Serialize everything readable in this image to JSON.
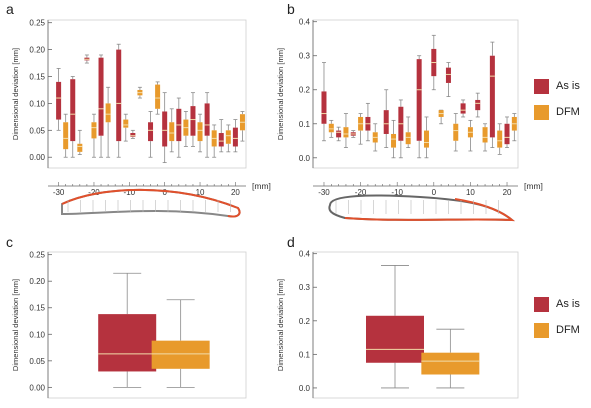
{
  "panel_labels": [
    "a",
    "b",
    "c",
    "d"
  ],
  "colors": {
    "as_is": "#b5323e",
    "dfm": "#e89a2c",
    "median": "#f2dca8",
    "axis": "#666666",
    "whisker": "#8a8a8a"
  },
  "x_unit": "[mm]",
  "legend": {
    "as_is": "As is",
    "dfm": "DFM"
  },
  "chart_data": [
    {
      "type": "box",
      "panel": "a",
      "ylabel": "Dimensional deviation [mm]",
      "xlabel": "[mm]",
      "xlim": [
        -33,
        23
      ],
      "ylim": [
        -0.02,
        0.255
      ],
      "yticks": [
        0.0,
        0.05,
        0.1,
        0.15,
        0.2,
        0.25
      ],
      "xticks": [
        -30,
        -20,
        -10,
        0,
        10,
        20
      ],
      "series": [
        {
          "name": "As is",
          "boxes": [
            {
              "x": -30,
              "min": 0.05,
              "q1": 0.07,
              "med": 0.11,
              "q3": 0.14,
              "max": 0.165
            },
            {
              "x": -26,
              "min": 0.0,
              "q1": 0.03,
              "med": 0.08,
              "q3": 0.145,
              "max": 0.15
            },
            {
              "x": -22,
              "min": 0.175,
              "q1": 0.18,
              "med": 0.182,
              "q3": 0.185,
              "max": 0.19
            },
            {
              "x": -18,
              "min": 0.0,
              "q1": 0.04,
              "med": 0.09,
              "q3": 0.185,
              "max": 0.19
            },
            {
              "x": -13,
              "min": 0.0,
              "q1": 0.03,
              "med": 0.1,
              "q3": 0.2,
              "max": 0.21
            },
            {
              "x": -9,
              "min": 0.035,
              "q1": 0.038,
              "med": 0.04,
              "q3": 0.045,
              "max": 0.05
            },
            {
              "x": -4,
              "min": 0.0,
              "q1": 0.03,
              "med": 0.05,
              "q3": 0.065,
              "max": 0.085
            },
            {
              "x": 0,
              "min": -0.01,
              "q1": 0.02,
              "med": 0.05,
              "q3": 0.085,
              "max": 0.12
            },
            {
              "x": 4,
              "min": 0.0,
              "q1": 0.03,
              "med": 0.06,
              "q3": 0.09,
              "max": 0.11
            },
            {
              "x": 8,
              "min": 0.02,
              "q1": 0.04,
              "med": 0.07,
              "q3": 0.095,
              "max": 0.12
            },
            {
              "x": 12,
              "min": 0.0,
              "q1": 0.04,
              "med": 0.06,
              "q3": 0.1,
              "max": 0.12
            },
            {
              "x": 16,
              "min": 0.01,
              "q1": 0.02,
              "med": 0.03,
              "q3": 0.045,
              "max": 0.07
            },
            {
              "x": 20,
              "min": 0.01,
              "q1": 0.02,
              "med": 0.035,
              "q3": 0.055,
              "max": 0.07
            }
          ]
        },
        {
          "name": "DFM",
          "boxes": [
            {
              "x": -28,
              "min": 0.0,
              "q1": 0.015,
              "med": 0.035,
              "q3": 0.065,
              "max": 0.08
            },
            {
              "x": -24,
              "min": 0.005,
              "q1": 0.01,
              "med": 0.02,
              "q3": 0.025,
              "max": 0.05
            },
            {
              "x": -20,
              "min": 0.0,
              "q1": 0.035,
              "med": 0.055,
              "q3": 0.065,
              "max": 0.08
            },
            {
              "x": -16,
              "min": 0.0,
              "q1": 0.065,
              "med": 0.08,
              "q3": 0.1,
              "max": 0.13
            },
            {
              "x": -11,
              "min": 0.03,
              "q1": 0.055,
              "med": 0.06,
              "q3": 0.07,
              "max": 0.08
            },
            {
              "x": -7,
              "min": 0.11,
              "q1": 0.115,
              "med": 0.12,
              "q3": 0.125,
              "max": 0.13
            },
            {
              "x": -2,
              "min": 0.08,
              "q1": 0.09,
              "med": 0.11,
              "q3": 0.135,
              "max": 0.14
            },
            {
              "x": 2,
              "min": 0.01,
              "q1": 0.03,
              "med": 0.045,
              "q3": 0.065,
              "max": 0.09
            },
            {
              "x": 6,
              "min": 0.02,
              "q1": 0.04,
              "med": 0.055,
              "q3": 0.07,
              "max": 0.085
            },
            {
              "x": 10,
              "min": 0.01,
              "q1": 0.03,
              "med": 0.05,
              "q3": 0.065,
              "max": 0.08
            },
            {
              "x": 14,
              "min": 0.0,
              "q1": 0.02,
              "med": 0.035,
              "q3": 0.05,
              "max": 0.06
            },
            {
              "x": 18,
              "min": 0.01,
              "q1": 0.025,
              "med": 0.04,
              "q3": 0.05,
              "max": 0.06
            },
            {
              "x": 22,
              "min": 0.03,
              "q1": 0.05,
              "med": 0.065,
              "q3": 0.08,
              "max": 0.085
            }
          ]
        }
      ]
    },
    {
      "type": "box",
      "panel": "b",
      "ylabel": "Dimensional deviation [mm]",
      "xlabel": "[mm]",
      "xlim": [
        -33,
        23
      ],
      "ylim": [
        -0.03,
        0.405
      ],
      "yticks": [
        0.0,
        0.1,
        0.2,
        0.3,
        0.4
      ],
      "xticks": [
        -30,
        -20,
        -10,
        0,
        10,
        20
      ],
      "series": [
        {
          "name": "As is",
          "boxes": [
            {
              "x": -30,
              "min": 0.05,
              "q1": 0.1,
              "med": 0.13,
              "q3": 0.195,
              "max": 0.28
            },
            {
              "x": -26,
              "min": 0.05,
              "q1": 0.06,
              "med": 0.075,
              "q3": 0.08,
              "max": 0.09
            },
            {
              "x": -22,
              "min": 0.06,
              "q1": 0.065,
              "med": 0.07,
              "q3": 0.075,
              "max": 0.08
            },
            {
              "x": -18,
              "min": 0.05,
              "q1": 0.08,
              "med": 0.1,
              "q3": 0.12,
              "max": 0.16
            },
            {
              "x": -13,
              "min": 0.03,
              "q1": 0.07,
              "med": 0.1,
              "q3": 0.14,
              "max": 0.2
            },
            {
              "x": -9,
              "min": 0.0,
              "q1": 0.05,
              "med": 0.1,
              "q3": 0.15,
              "max": 0.17
            },
            {
              "x": -4,
              "min": 0.0,
              "q1": 0.05,
              "med": 0.2,
              "q3": 0.29,
              "max": 0.3
            },
            {
              "x": 0,
              "min": 0.2,
              "q1": 0.24,
              "med": 0.28,
              "q3": 0.32,
              "max": 0.36
            },
            {
              "x": 4,
              "min": 0.18,
              "q1": 0.22,
              "med": 0.245,
              "q3": 0.265,
              "max": 0.28
            },
            {
              "x": 8,
              "min": 0.12,
              "q1": 0.13,
              "med": 0.14,
              "q3": 0.16,
              "max": 0.17
            },
            {
              "x": 12,
              "min": 0.12,
              "q1": 0.14,
              "med": 0.16,
              "q3": 0.17,
              "max": 0.19
            },
            {
              "x": 16,
              "min": 0.03,
              "q1": 0.06,
              "med": 0.24,
              "q3": 0.3,
              "max": 0.34
            },
            {
              "x": 20,
              "min": 0.03,
              "q1": 0.04,
              "med": 0.06,
              "q3": 0.1,
              "max": 0.12
            }
          ]
        },
        {
          "name": "DFM",
          "boxes": [
            {
              "x": -28,
              "min": 0.06,
              "q1": 0.075,
              "med": 0.085,
              "q3": 0.1,
              "max": 0.11
            },
            {
              "x": -24,
              "min": 0.03,
              "q1": 0.06,
              "med": 0.07,
              "q3": 0.09,
              "max": 0.13
            },
            {
              "x": -20,
              "min": 0.04,
              "q1": 0.08,
              "med": 0.1,
              "q3": 0.12,
              "max": 0.13
            },
            {
              "x": -16,
              "min": 0.02,
              "q1": 0.045,
              "med": 0.06,
              "q3": 0.075,
              "max": 0.1
            },
            {
              "x": -11,
              "min": 0.0,
              "q1": 0.03,
              "med": 0.055,
              "q3": 0.07,
              "max": 0.11
            },
            {
              "x": -7,
              "min": 0.03,
              "q1": 0.04,
              "med": 0.06,
              "q3": 0.075,
              "max": 0.12
            },
            {
              "x": -2,
              "min": 0.0,
              "q1": 0.03,
              "med": 0.045,
              "q3": 0.08,
              "max": 0.12
            },
            {
              "x": 2,
              "min": 0.1,
              "q1": 0.12,
              "med": 0.13,
              "q3": 0.14,
              "max": 0.14
            },
            {
              "x": 6,
              "min": 0.02,
              "q1": 0.05,
              "med": 0.08,
              "q3": 0.1,
              "max": 0.13
            },
            {
              "x": 10,
              "min": 0.02,
              "q1": 0.06,
              "med": 0.075,
              "q3": 0.09,
              "max": 0.11
            },
            {
              "x": 14,
              "min": 0.02,
              "q1": 0.045,
              "med": 0.06,
              "q3": 0.09,
              "max": 0.1
            },
            {
              "x": 18,
              "min": 0.01,
              "q1": 0.03,
              "med": 0.05,
              "q3": 0.08,
              "max": 0.1
            },
            {
              "x": 22,
              "min": 0.05,
              "q1": 0.08,
              "med": 0.1,
              "q3": 0.12,
              "max": 0.13
            }
          ]
        }
      ]
    },
    {
      "type": "box",
      "panel": "c",
      "ylabel": "Dimensional deviation [mm]",
      "ylim": [
        -0.02,
        0.255
      ],
      "yticks": [
        0.0,
        0.05,
        0.1,
        0.15,
        0.2,
        0.25
      ],
      "series": [
        {
          "name": "As is",
          "boxes": [
            {
              "x": 0,
              "min": 0.0,
              "q1": 0.03,
              "med": 0.063,
              "q3": 0.138,
              "max": 0.215
            }
          ]
        },
        {
          "name": "DFM",
          "boxes": [
            {
              "x": 1,
              "min": 0.0,
              "q1": 0.035,
              "med": 0.063,
              "q3": 0.088,
              "max": 0.165
            }
          ]
        }
      ]
    },
    {
      "type": "box",
      "panel": "d",
      "ylabel": "Dimensional deviation [mm]",
      "ylim": [
        -0.03,
        0.405
      ],
      "yticks": [
        0.0,
        0.1,
        0.2,
        0.3,
        0.4
      ],
      "series": [
        {
          "name": "As is",
          "boxes": [
            {
              "x": 0,
              "min": 0.0,
              "q1": 0.075,
              "med": 0.115,
              "q3": 0.215,
              "max": 0.365
            }
          ]
        },
        {
          "name": "DFM",
          "boxes": [
            {
              "x": 1,
              "min": 0.0,
              "q1": 0.04,
              "med": 0.08,
              "q3": 0.105,
              "max": 0.175
            }
          ]
        }
      ]
    }
  ]
}
